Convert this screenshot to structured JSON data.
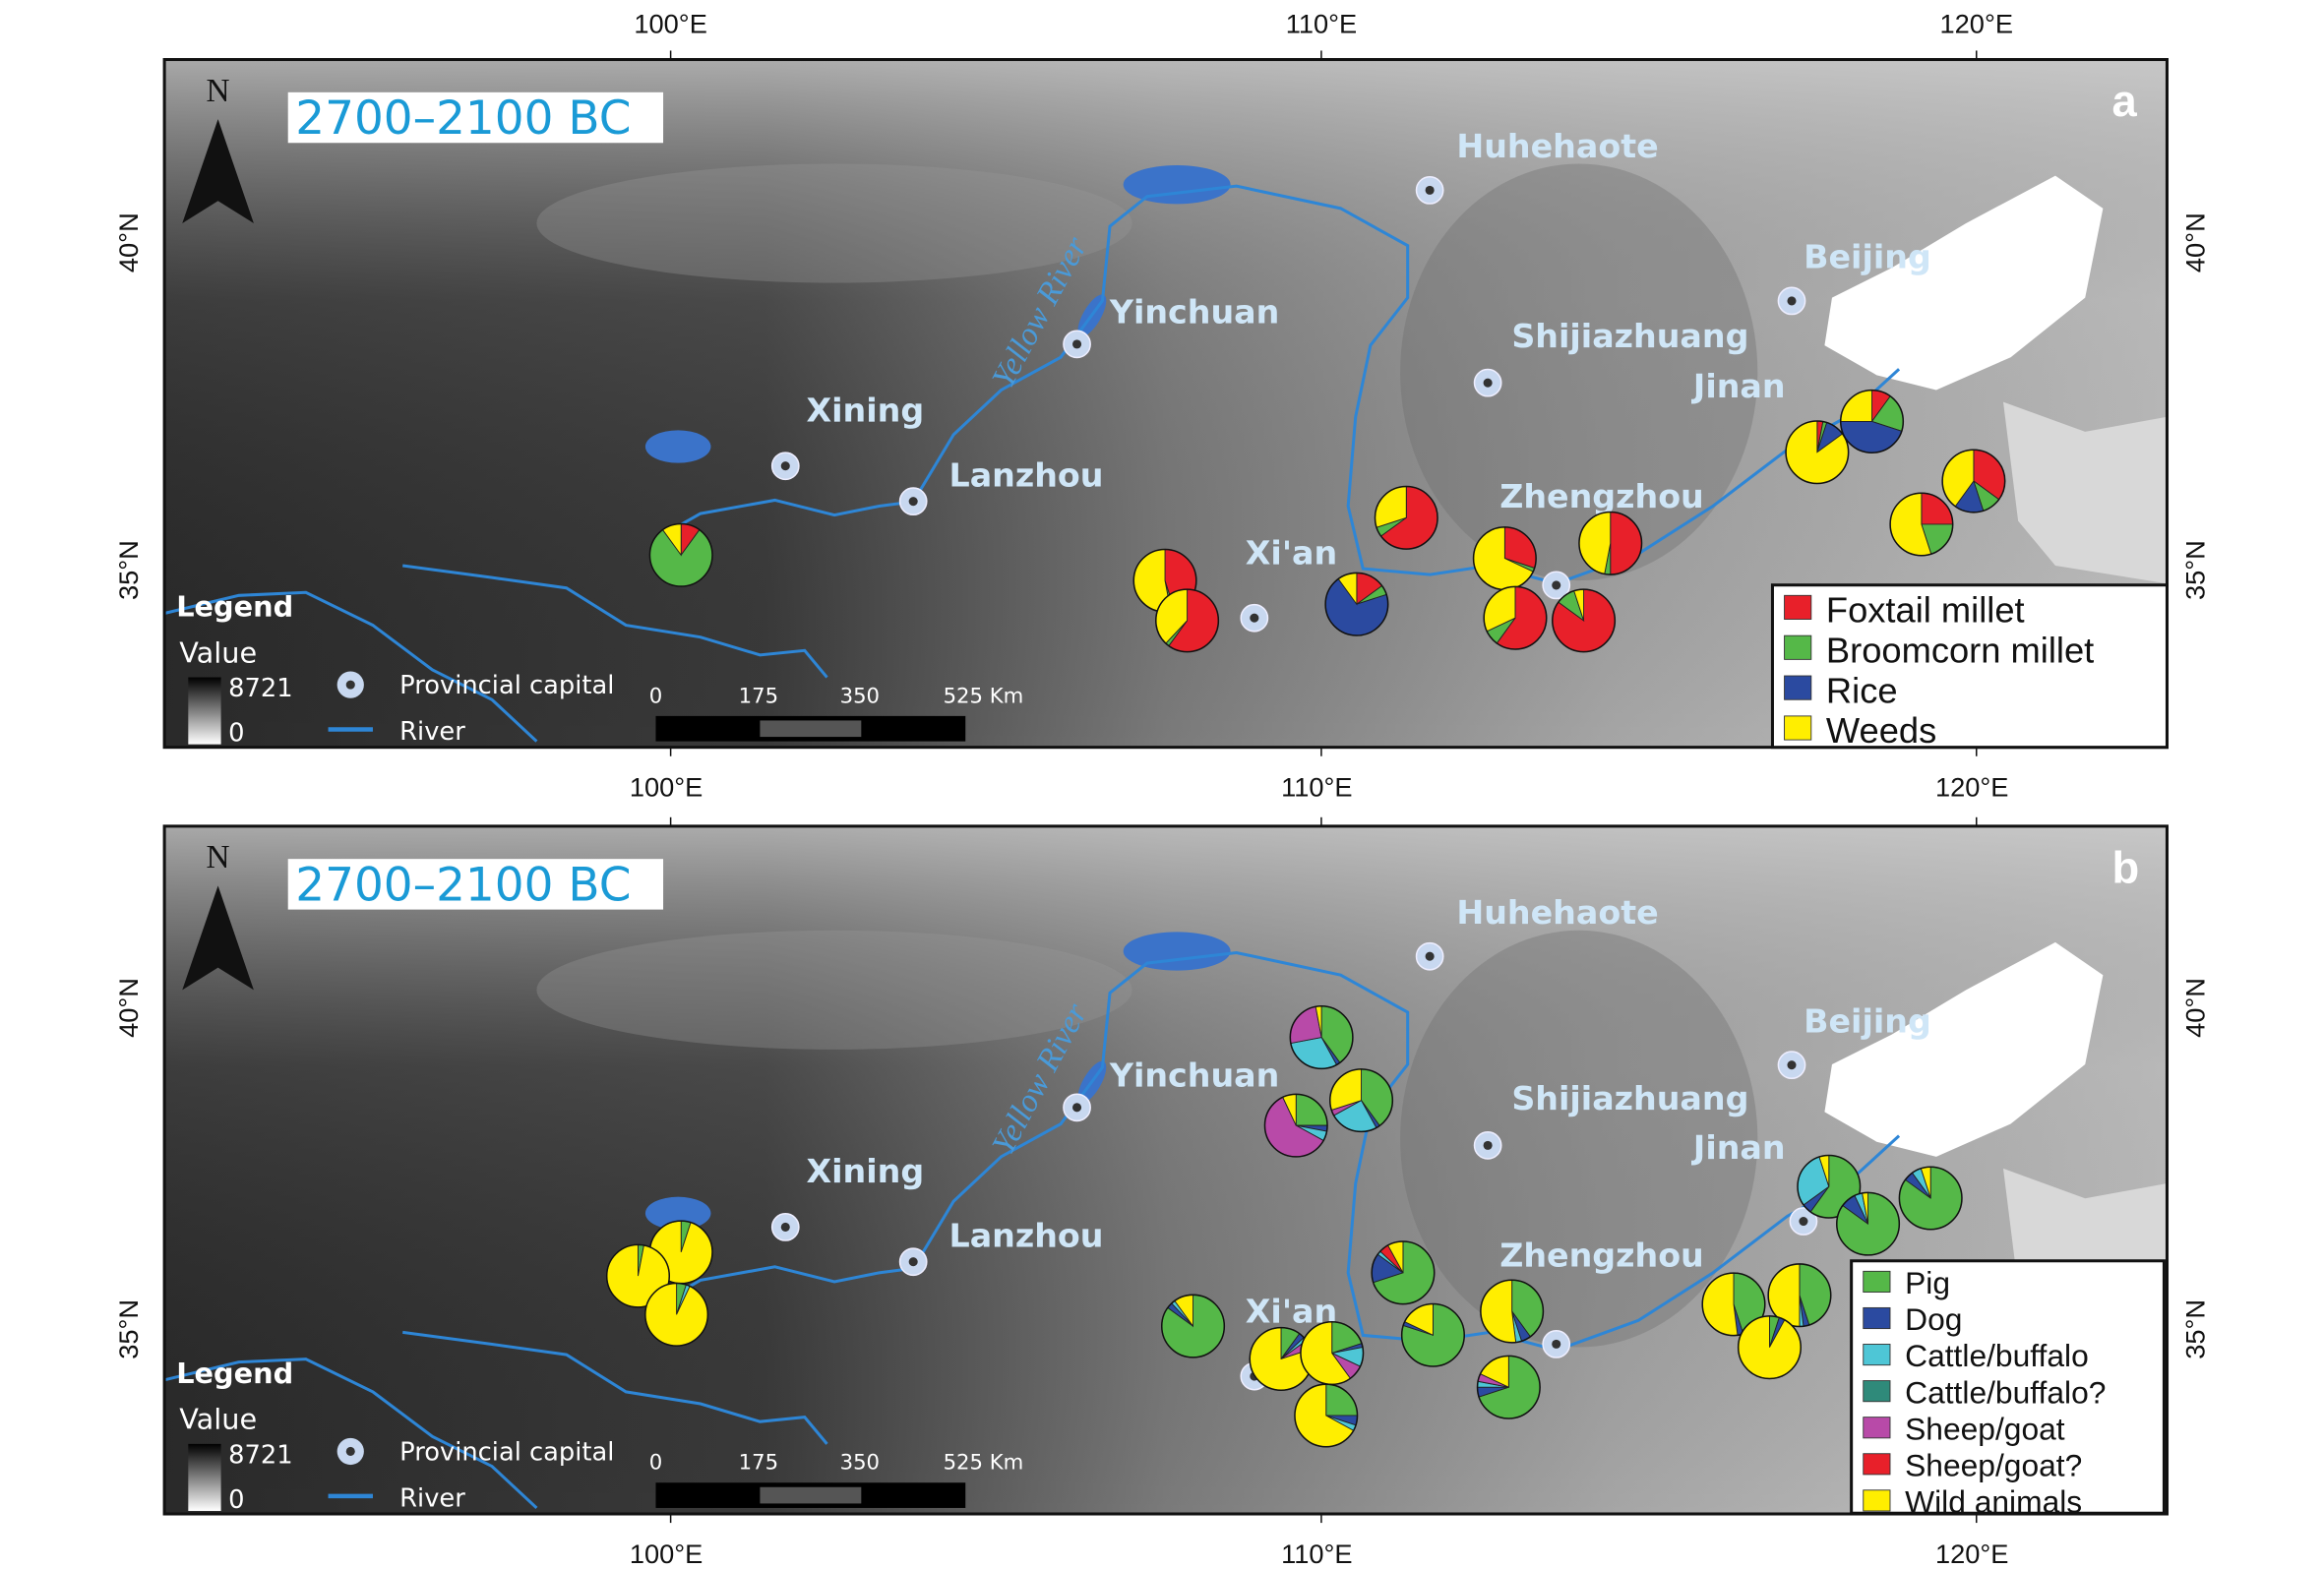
{
  "panels": [
    {
      "letter": "a",
      "period": "2700–2100 BC",
      "legend": [
        {
          "label": "Foxtail millet",
          "color": "#e8202a"
        },
        {
          "label": "Broomcorn millet",
          "color": "#55b848"
        },
        {
          "label": "Rice",
          "color": "#2b4aa0"
        },
        {
          "label": "Weeds",
          "color": "#ffee00"
        }
      ]
    },
    {
      "letter": "b",
      "period": "2700–2100 BC",
      "legend": [
        {
          "label": "Pig",
          "color": "#55b848"
        },
        {
          "label": "Dog",
          "color": "#2b4aa0"
        },
        {
          "label": "Cattle/buffalo",
          "color": "#4ec6d6"
        },
        {
          "label": "Cattle/buffalo?",
          "color": "#2f8a7a"
        },
        {
          "label": "Sheep/goat",
          "color": "#b84aa8"
        },
        {
          "label": "Sheep/goat?",
          "color": "#e8202a"
        },
        {
          "label": "Wild animals",
          "color": "#ffee00"
        }
      ]
    }
  ],
  "axes": {
    "lon_ticks": [
      "100°E",
      "110°E",
      "120°E"
    ],
    "lat_ticks": [
      "40°N",
      "35°N"
    ]
  },
  "north": "N",
  "river_label": "Yellow River",
  "map_legend": {
    "title": "Legend",
    "value_label": "Value",
    "max": "8721",
    "min": "0",
    "capital": "Provincial capital",
    "river": "River"
  },
  "scale_bar": {
    "labels": [
      "0",
      "175",
      "350",
      "525 Km"
    ]
  },
  "cities": [
    {
      "name": "Huhehaote",
      "lon": 111.64,
      "lat": 40.8
    },
    {
      "name": "Beijing",
      "lon": 117.19,
      "lat": 39.11
    },
    {
      "name": "Yinchuan",
      "lon": 106.23,
      "lat": 38.45
    },
    {
      "name": "Shijiazhuang",
      "lon": 112.53,
      "lat": 37.86
    },
    {
      "name": "Xining",
      "lon": 101.76,
      "lat": 36.59
    },
    {
      "name": "Lanzhou",
      "lon": 103.72,
      "lat": 36.05
    },
    {
      "name": "Xi'an",
      "lon": 108.95,
      "lat": 34.27
    },
    {
      "name": "Zhengzhou",
      "lon": 113.58,
      "lat": 34.77
    },
    {
      "name": "Jinan",
      "lon": 117.37,
      "lat": 36.68
    }
  ],
  "sites_a": [
    {
      "lon": 100.16,
      "lat": 35.23,
      "values": [
        0.1,
        0.8,
        0,
        0.1
      ]
    },
    {
      "lon": 107.58,
      "lat": 34.84,
      "values": [
        0.45,
        0.02,
        0,
        0.53
      ]
    },
    {
      "lon": 107.92,
      "lat": 34.23,
      "values": [
        0.6,
        0.02,
        0,
        0.38
      ]
    },
    {
      "lon": 110.52,
      "lat": 34.48,
      "values": [
        0.15,
        0.05,
        0.7,
        0.1
      ]
    },
    {
      "lon": 111.28,
      "lat": 35.8,
      "values": [
        0.65,
        0.05,
        0,
        0.3
      ]
    },
    {
      "lon": 112.79,
      "lat": 35.18,
      "values": [
        0.3,
        0.02,
        0,
        0.68
      ]
    },
    {
      "lon": 112.95,
      "lat": 34.27,
      "values": [
        0.6,
        0.08,
        0,
        0.32
      ]
    },
    {
      "lon": 114.0,
      "lat": 34.23,
      "values": [
        0.85,
        0.1,
        0,
        0.05
      ]
    },
    {
      "lon": 114.41,
      "lat": 35.41,
      "values": [
        0.5,
        0.03,
        0,
        0.47
      ]
    },
    {
      "lon": 117.58,
      "lat": 36.8,
      "values": [
        0.03,
        0.02,
        0.1,
        0.85
      ]
    },
    {
      "lon": 118.42,
      "lat": 37.27,
      "values": [
        0.1,
        0.2,
        0.45,
        0.25
      ]
    },
    {
      "lon": 119.98,
      "lat": 36.36,
      "values": [
        0.35,
        0.1,
        0.15,
        0.4
      ]
    },
    {
      "lon": 119.18,
      "lat": 35.7,
      "values": [
        0.25,
        0.2,
        0,
        0.55
      ]
    }
  ],
  "sites_b": [
    {
      "lon": 100.16,
      "lat": 36.2,
      "values": [
        0.05,
        0,
        0,
        0,
        0,
        0,
        0.95
      ]
    },
    {
      "lon": 99.5,
      "lat": 35.83,
      "values": [
        0.03,
        0,
        0,
        0,
        0,
        0,
        0.97
      ]
    },
    {
      "lon": 100.09,
      "lat": 35.23,
      "values": [
        0.05,
        0,
        0.02,
        0,
        0,
        0,
        0.93
      ]
    },
    {
      "lon": 109.98,
      "lat": 39.54,
      "values": [
        0.4,
        0.02,
        0.3,
        0,
        0.25,
        0,
        0.03
      ]
    },
    {
      "lon": 110.59,
      "lat": 38.56,
      "values": [
        0.4,
        0.02,
        0.25,
        0,
        0.03,
        0,
        0.3
      ]
    },
    {
      "lon": 109.59,
      "lat": 38.17,
      "values": [
        0.25,
        0.03,
        0.05,
        0,
        0.6,
        0,
        0.07
      ]
    },
    {
      "lon": 108.01,
      "lat": 35.05,
      "values": [
        0.85,
        0.03,
        0.02,
        0,
        0,
        0,
        0.1
      ]
    },
    {
      "lon": 109.36,
      "lat": 34.54,
      "values": [
        0.1,
        0.03,
        0.02,
        0,
        0.05,
        0,
        0.8
      ]
    },
    {
      "lon": 110.14,
      "lat": 34.63,
      "values": [
        0.2,
        0.02,
        0.1,
        0,
        0.08,
        0,
        0.6
      ]
    },
    {
      "lon": 110.05,
      "lat": 33.66,
      "values": [
        0.25,
        0.05,
        0.03,
        0,
        0,
        0,
        0.67
      ]
    },
    {
      "lon": 111.23,
      "lat": 35.88,
      "values": [
        0.7,
        0.15,
        0.02,
        0,
        0,
        0.05,
        0.08
      ]
    },
    {
      "lon": 111.69,
      "lat": 34.91,
      "values": [
        0.8,
        0.02,
        0,
        0,
        0,
        0,
        0.18
      ]
    },
    {
      "lon": 112.9,
      "lat": 35.28,
      "values": [
        0.4,
        0.05,
        0.03,
        0,
        0,
        0,
        0.52
      ]
    },
    {
      "lon": 112.85,
      "lat": 34.1,
      "values": [
        0.7,
        0.05,
        0.03,
        0,
        0.04,
        0,
        0.18
      ]
    },
    {
      "lon": 117.76,
      "lat": 37.22,
      "values": [
        0.6,
        0.05,
        0.3,
        0,
        0,
        0,
        0.05
      ]
    },
    {
      "lon": 118.36,
      "lat": 36.64,
      "values": [
        0.85,
        0.08,
        0.04,
        0,
        0,
        0,
        0.03
      ]
    },
    {
      "lon": 119.32,
      "lat": 37.04,
      "values": [
        0.85,
        0.05,
        0.05,
        0,
        0,
        0,
        0.05
      ]
    },
    {
      "lon": 116.3,
      "lat": 35.39,
      "values": [
        0.45,
        0.03,
        0,
        0,
        0,
        0,
        0.52
      ]
    },
    {
      "lon": 117.31,
      "lat": 35.53,
      "values": [
        0.45,
        0.03,
        0.02,
        0,
        0,
        0,
        0.5
      ]
    },
    {
      "lon": 116.85,
      "lat": 34.72,
      "values": [
        0.05,
        0.03,
        0,
        0,
        0,
        0,
        0.92
      ]
    }
  ]
}
